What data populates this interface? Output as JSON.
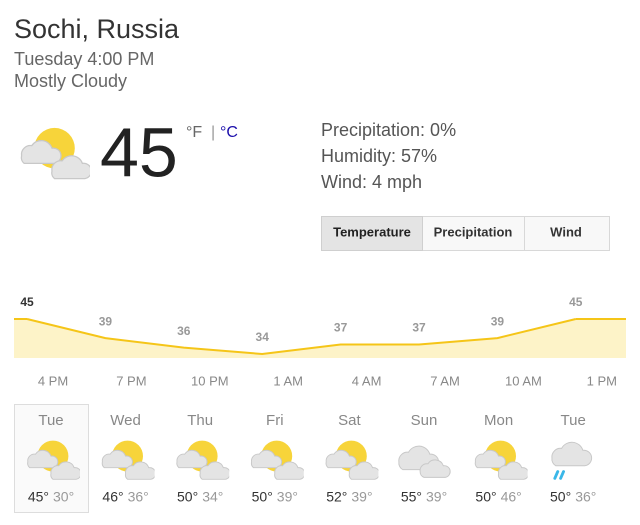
{
  "header": {
    "location": "Sochi, Russia",
    "time": "Tuesday 4:00 PM",
    "condition": "Mostly Cloudy"
  },
  "current": {
    "temperature": "45",
    "unit_f": "°F",
    "separator": "|",
    "unit_c": "°C"
  },
  "details": [
    "Precipitation: 0%",
    "Humidity: 57%",
    "Wind: 4 mph"
  ],
  "tabs": [
    "Temperature",
    "Precipitation",
    "Wind"
  ],
  "chart_data": {
    "type": "line",
    "categories": [
      "4 PM",
      "7 PM",
      "10 PM",
      "1 AM",
      "4 AM",
      "7 AM",
      "10 AM",
      "1 PM"
    ],
    "values": [
      45,
      39,
      36,
      34,
      37,
      37,
      39,
      45
    ],
    "color": "#f5c518",
    "fill": "#fdf3c8"
  },
  "forecast": [
    {
      "day": "Tue",
      "high": "45°",
      "low": "30°"
    },
    {
      "day": "Wed",
      "high": "46°",
      "low": "36°"
    },
    {
      "day": "Thu",
      "high": "50°",
      "low": "34°"
    },
    {
      "day": "Fri",
      "high": "50°",
      "low": "39°"
    },
    {
      "day": "Sat",
      "high": "52°",
      "low": "39°"
    },
    {
      "day": "Sun",
      "high": "55°",
      "low": "39°"
    },
    {
      "day": "Mon",
      "high": "50°",
      "low": "46°"
    },
    {
      "day": "Tue",
      "high": "50°",
      "low": "36°"
    }
  ]
}
